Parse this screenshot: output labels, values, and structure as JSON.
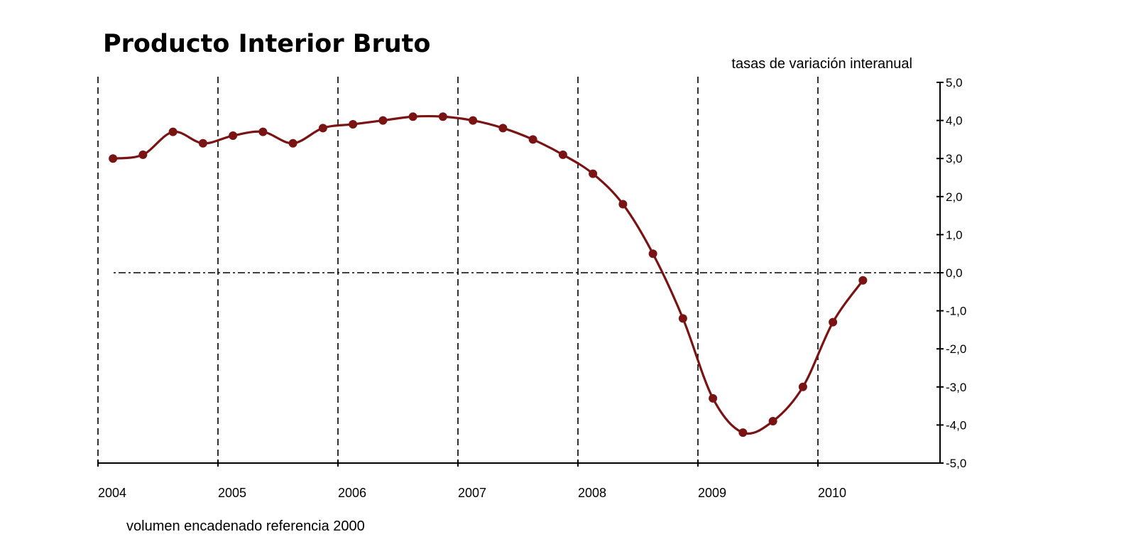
{
  "chart_data": {
    "type": "line",
    "title": "Producto Interior Bruto",
    "subtitle": "tasas de variación interanual",
    "footnote": "volumen encadenado referencia 2000",
    "xlabel": "",
    "ylabel": "",
    "y_axis_position": "right",
    "ylim": [
      -5.0,
      5.0
    ],
    "y_ticks": [
      "5,0",
      "4,0",
      "3,0",
      "2,0",
      "1,0",
      "0,0",
      "-1,0",
      "-2,0",
      "-3,0",
      "-4,0",
      "-5,0"
    ],
    "x_years": [
      "2004",
      "2005",
      "2006",
      "2007",
      "2008",
      "2009",
      "2010"
    ],
    "vertical_grid": "dashed at year boundaries",
    "zero_line": "dash-dot",
    "series": [
      {
        "color": "#7a1414",
        "quarters": [
          "2004 T1",
          "2004 T2",
          "2004 T3",
          "2004 T4",
          "2005 T1",
          "2005 T2",
          "2005 T3",
          "2005 T4",
          "2006 T1",
          "2006 T2",
          "2006 T3",
          "2006 T4",
          "2007 T1",
          "2007 T2",
          "2007 T3",
          "2007 T4",
          "2008 T1",
          "2008 T2",
          "2008 T3",
          "2008 T4",
          "2009 T1",
          "2009 T2",
          "2009 T3",
          "2009 T4",
          "2010 T1",
          "2010 T2"
        ],
        "values": [
          3.0,
          3.1,
          3.7,
          3.4,
          3.6,
          3.7,
          3.4,
          3.8,
          3.9,
          4.0,
          4.1,
          4.1,
          4.0,
          3.8,
          3.5,
          3.1,
          2.6,
          1.8,
          0.5,
          -1.2,
          -3.3,
          -4.2,
          -3.9,
          -3.0,
          -1.3,
          -0.2
        ]
      }
    ]
  }
}
